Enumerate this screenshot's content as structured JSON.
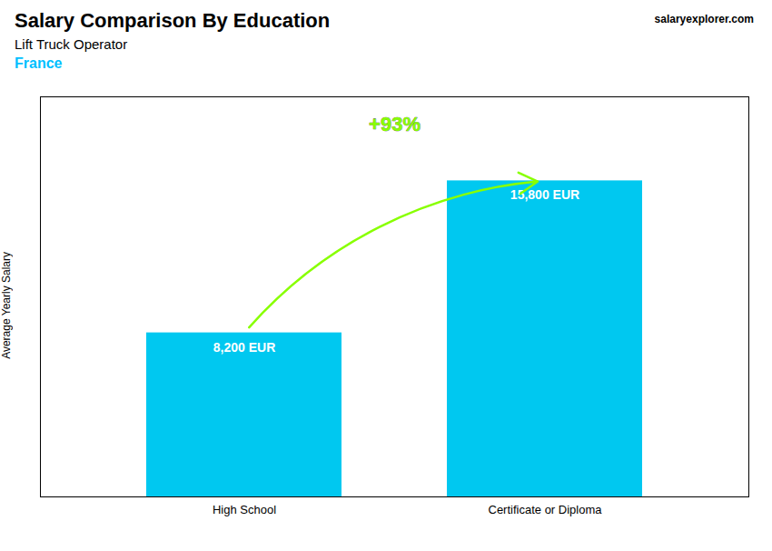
{
  "chart_data": {
    "type": "bar",
    "title": "Salary Comparison By Education",
    "subtitle": "Lift Truck Operator",
    "categories": [
      "High School",
      "Certificate or Diploma"
    ],
    "values": [
      8200,
      15800
    ],
    "value_labels": [
      "8,200 EUR",
      "15,800 EUR"
    ],
    "data_labels": true,
    "color": "#00C8F0",
    "ylabel": "Average Yearly Salary",
    "ylim": [
      0,
      20000
    ],
    "tick_labels": "x",
    "annotations": [
      {
        "text": "France",
        "color": "#00BFFF"
      },
      {
        "text": "salaryexplorer.com"
      },
      {
        "text": "+93%",
        "color": "#88FF00"
      }
    ]
  }
}
